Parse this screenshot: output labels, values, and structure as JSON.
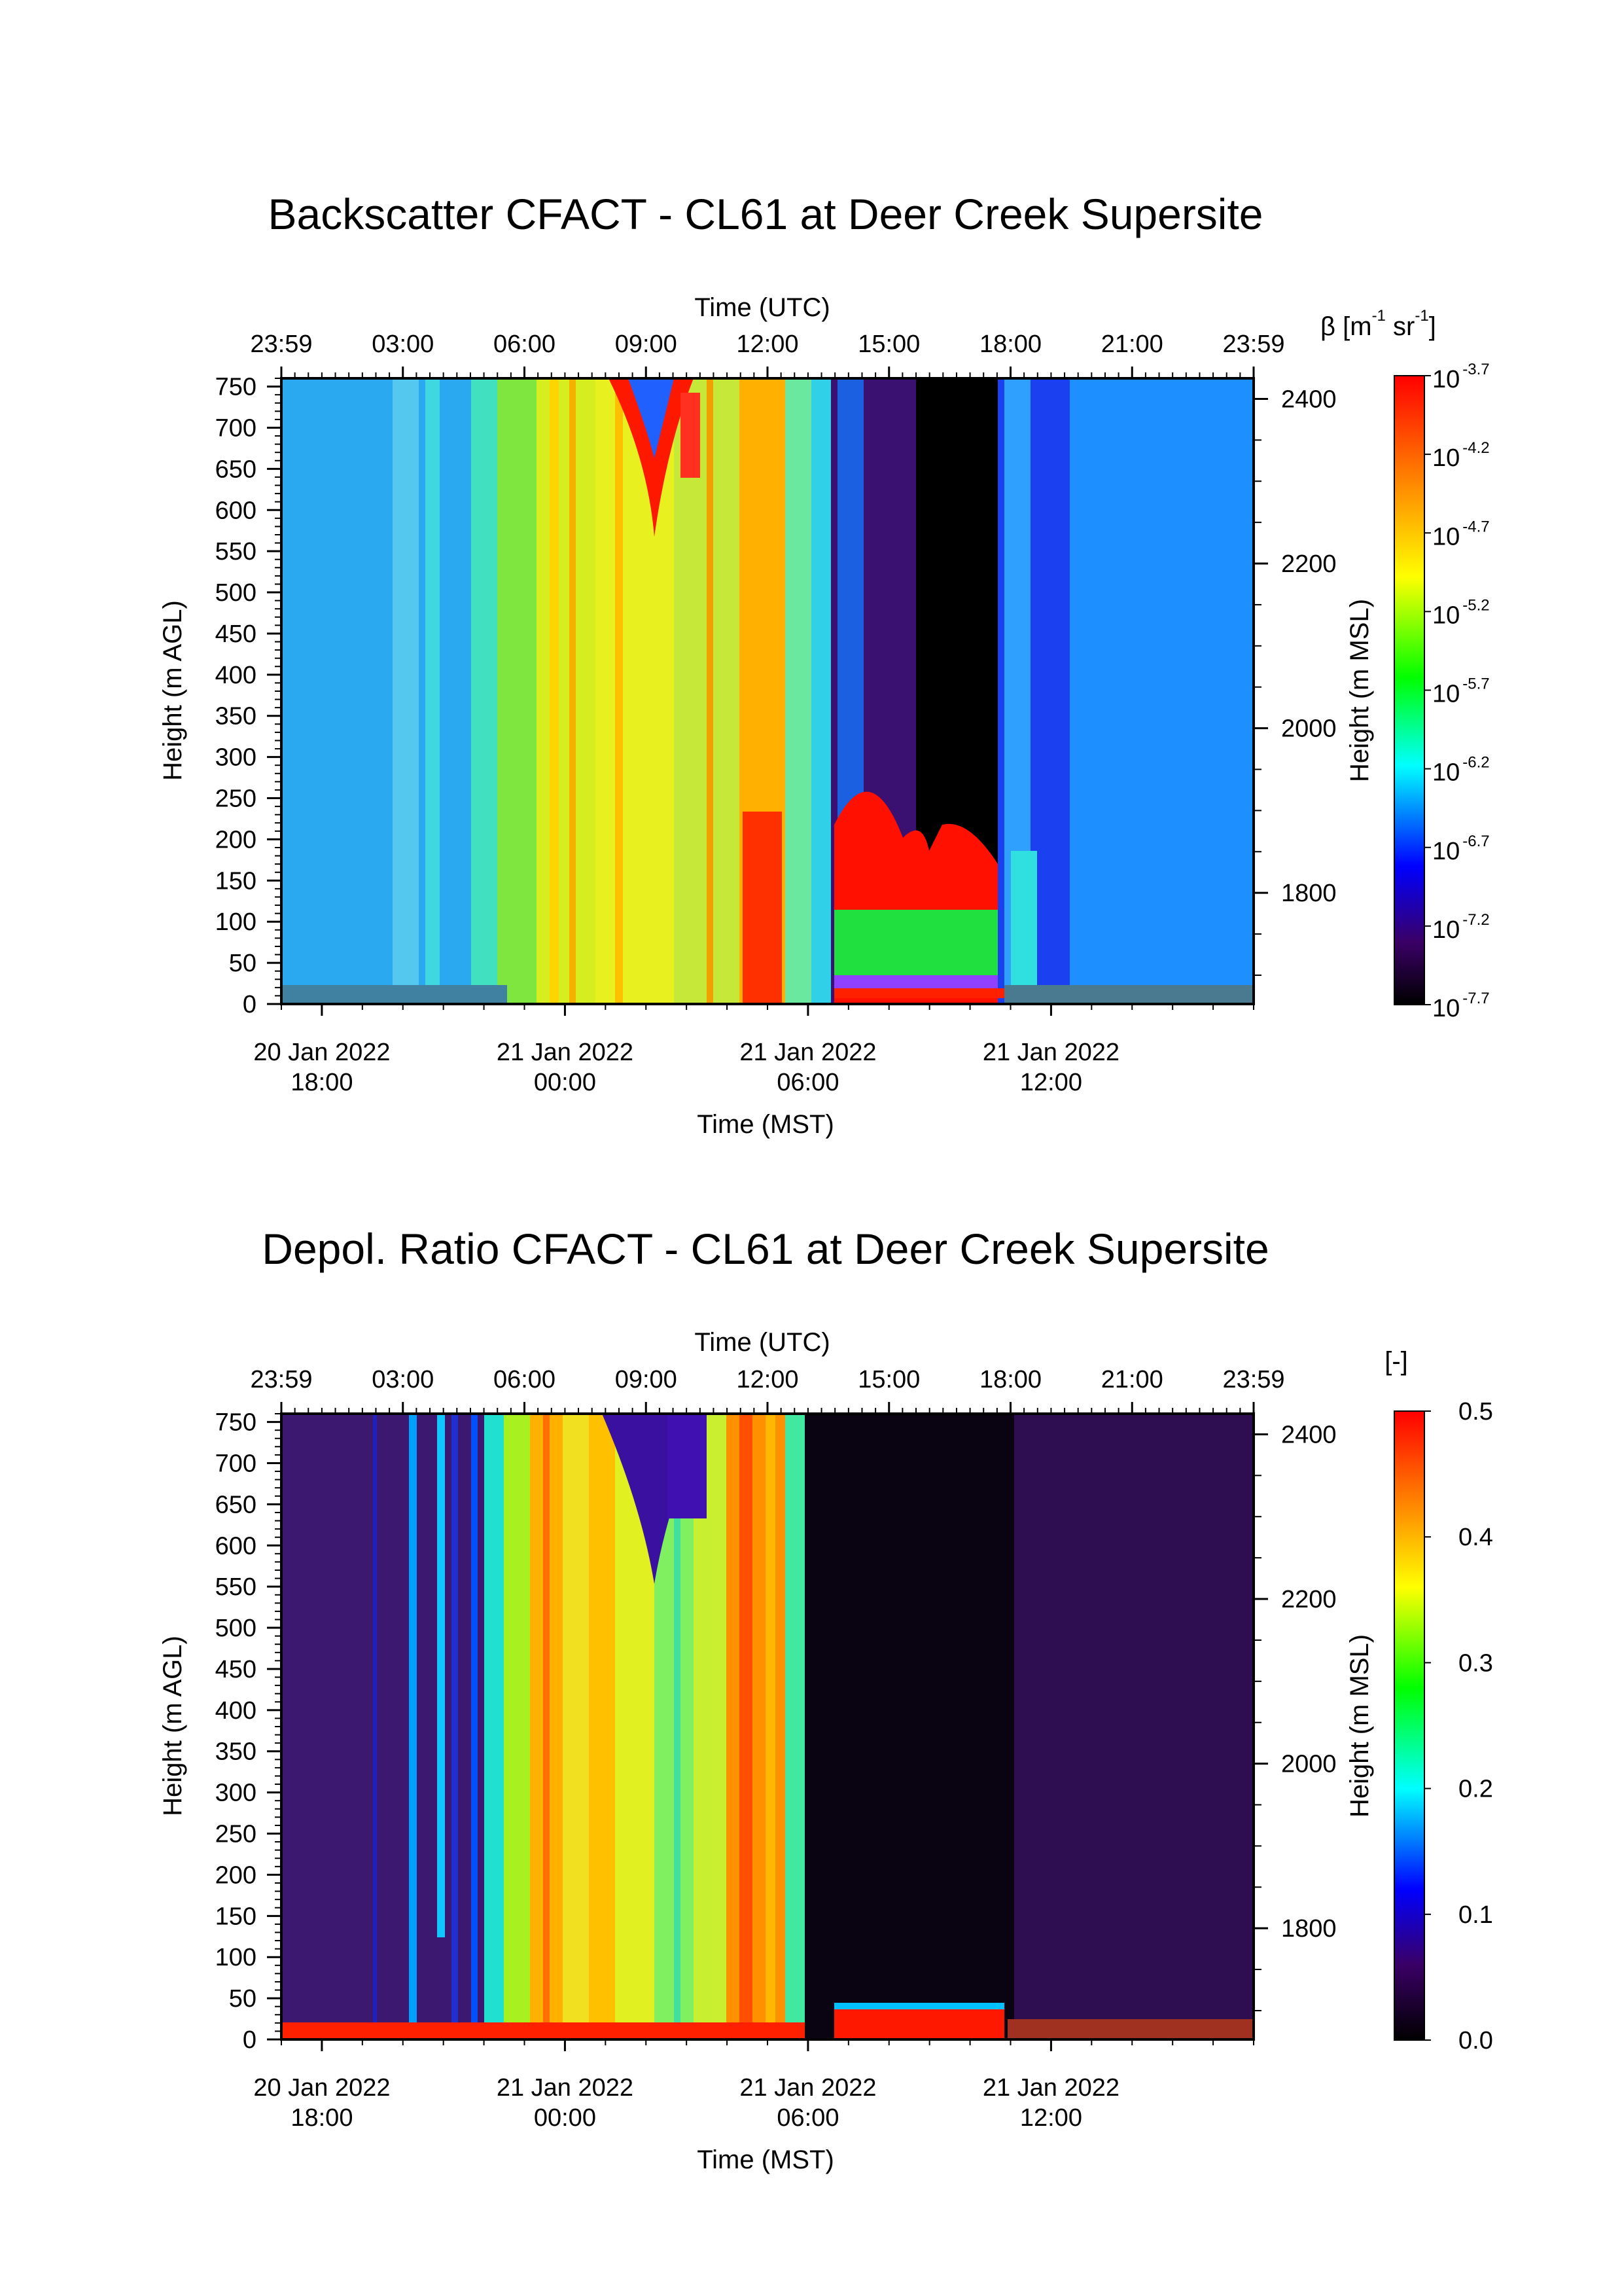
{
  "chart_data": [
    {
      "type": "heatmap",
      "title": "Backscatter CFACT - CL61 at Deer Creek Supersite",
      "x_top_label": "Time (UTC)",
      "x_top_ticks": [
        "23:59",
        "03:00",
        "06:00",
        "09:00",
        "12:00",
        "15:00",
        "18:00",
        "21:00",
        "23:59"
      ],
      "x_bottom_label": "Time (MST)",
      "x_bottom_ticks": [
        {
          "date": "20 Jan 2022",
          "time": "18:00",
          "utc_hours": 1.0
        },
        {
          "date": "21 Jan 2022",
          "time": "00:00",
          "utc_hours": 7.0
        },
        {
          "date": "21 Jan 2022",
          "time": "06:00",
          "utc_hours": 13.0
        },
        {
          "date": "21 Jan 2022",
          "time": "12:00",
          "utc_hours": 19.0
        }
      ],
      "ylabel_left": "Height (m AGL)",
      "ylim_left": [
        0,
        760
      ],
      "y_left_ticks": [
        "0",
        "50",
        "100",
        "150",
        "200",
        "250",
        "300",
        "350",
        "400",
        "450",
        "500",
        "550",
        "600",
        "650",
        "700",
        "750"
      ],
      "ylabel_right": "Height (m MSL)",
      "ylim_right": [
        1665,
        2425
      ],
      "y_right_ticks": [
        "1800",
        "2000",
        "2200",
        "2400"
      ],
      "colorbar": {
        "label_prefix": "β [m",
        "label_exp1": "-1",
        "label_mid": " sr",
        "label_exp2": "-1",
        "label_suffix": "]",
        "scale": "log",
        "tick_base": "10",
        "tick_exponents": [
          "-3.7",
          "-4.2",
          "-4.7",
          "-5.2",
          "-5.7",
          "-6.2",
          "-6.7",
          "-7.2",
          "-7.7"
        ],
        "range_log10": [
          -7.7,
          -3.7
        ]
      },
      "grid": false,
      "legend": "colorbar right"
    },
    {
      "type": "heatmap",
      "title": "Depol. Ratio CFACT - CL61 at Deer Creek Supersite",
      "x_top_label": "Time (UTC)",
      "x_top_ticks": [
        "23:59",
        "03:00",
        "06:00",
        "09:00",
        "12:00",
        "15:00",
        "18:00",
        "21:00",
        "23:59"
      ],
      "x_bottom_label": "Time (MST)",
      "x_bottom_ticks": [
        {
          "date": "20 Jan 2022",
          "time": "18:00",
          "utc_hours": 1.0
        },
        {
          "date": "21 Jan 2022",
          "time": "00:00",
          "utc_hours": 7.0
        },
        {
          "date": "21 Jan 2022",
          "time": "06:00",
          "utc_hours": 13.0
        },
        {
          "date": "21 Jan 2022",
          "time": "12:00",
          "utc_hours": 19.0
        }
      ],
      "ylabel_left": "Height (m AGL)",
      "ylim_left": [
        0,
        760
      ],
      "y_left_ticks": [
        "0",
        "50",
        "100",
        "150",
        "200",
        "250",
        "300",
        "350",
        "400",
        "450",
        "500",
        "550",
        "600",
        "650",
        "700",
        "750"
      ],
      "ylabel_right": "Height (m MSL)",
      "ylim_right": [
        1665,
        2425
      ],
      "y_right_ticks": [
        "1800",
        "2000",
        "2200",
        "2400"
      ],
      "colorbar": {
        "label": "[-]",
        "scale": "linear",
        "ticks": [
          "0.5",
          "0.4",
          "0.3",
          "0.2",
          "0.1",
          "0.0"
        ],
        "range": [
          0.0,
          0.5
        ]
      },
      "grid": false,
      "legend": "colorbar right"
    }
  ]
}
